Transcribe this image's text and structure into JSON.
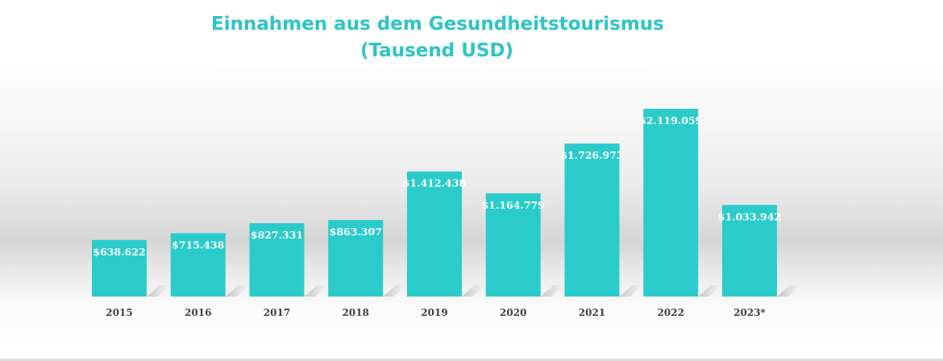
{
  "chart_data": {
    "type": "bar",
    "title": "Einnahmen aus dem Gesundheitstourismus",
    "subtitle": "(Tausend USD)",
    "categories": [
      "2015",
      "2016",
      "2017",
      "2018",
      "2019",
      "2020",
      "2021",
      "2022",
      "2023*"
    ],
    "values": [
      638622,
      715438,
      827331,
      863307,
      1412438,
      1164779,
      1726973,
      2119059,
      1033942
    ],
    "data_labels": [
      "$638.622",
      "$715.438",
      "$827.331",
      "$863.307",
      "$1.412.438",
      "$1.164.779",
      "$1.726.973",
      "$2.119.059",
      "$1.033.942"
    ],
    "xlabel": "",
    "ylabel": "",
    "ylim": [
      0,
      2119059
    ],
    "grid": false,
    "legend": "none",
    "bar_color": "#2ccbcb",
    "title_color": "#2ec4c6"
  }
}
